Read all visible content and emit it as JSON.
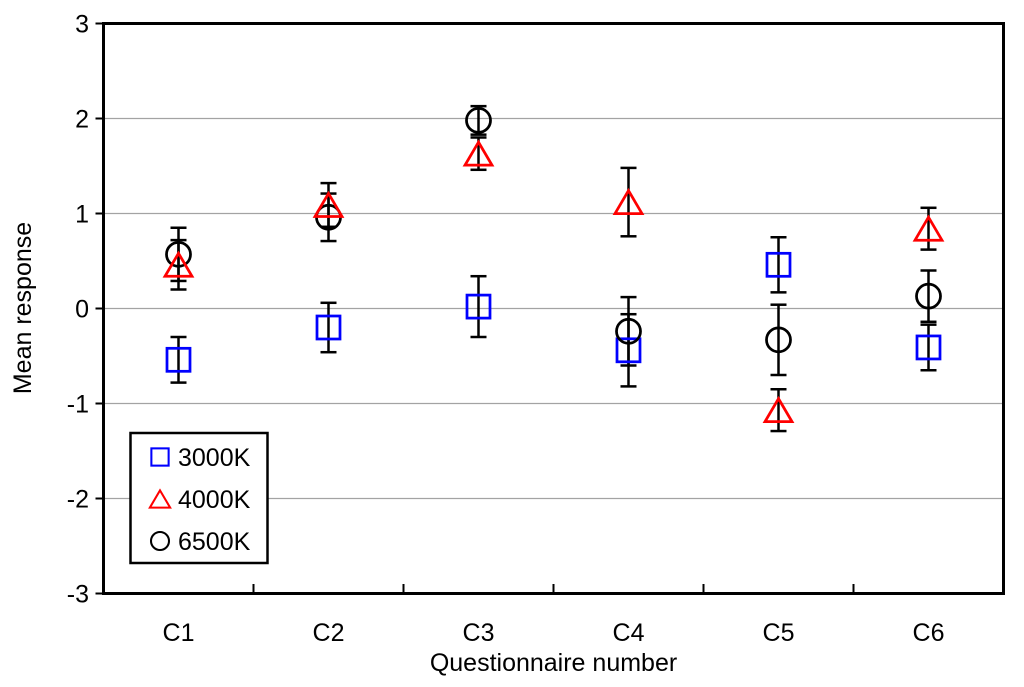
{
  "page": {
    "background": "#ffffff"
  },
  "chart_data": {
    "type": "scatter",
    "title": "",
    "xlabel": "Questionnaire number",
    "ylabel": "Mean response",
    "categories": [
      "C1",
      "C2",
      "C3",
      "C4",
      "C5",
      "C6"
    ],
    "y_ticks": [
      3,
      2,
      1,
      0,
      -1,
      -2,
      -3
    ],
    "ylim": [
      -3,
      3
    ],
    "grid": "horizontal-gray-lines",
    "gridline_color": "#a3a3a3",
    "axis_color": "#000000",
    "error_bar_color": "#000000",
    "legend_position": "inside-bottom-left",
    "legend_entries": [
      "3000K",
      "4000K",
      "6500K"
    ],
    "series": [
      {
        "name": "3000K",
        "marker": "square",
        "color": "#0000ff",
        "values": [
          -0.54,
          -0.2,
          0.02,
          -0.44,
          0.46,
          -0.41
        ],
        "errors": [
          0.24,
          0.26,
          0.32,
          0.38,
          0.29,
          0.24
        ]
      },
      {
        "name": "4000K",
        "marker": "triangle",
        "color": "#ff0000",
        "values": [
          0.46,
          1.09,
          1.63,
          1.12,
          -1.07,
          0.84
        ],
        "errors": [
          0.26,
          0.23,
          0.17,
          0.36,
          0.22,
          0.22
        ]
      },
      {
        "name": "6500K",
        "marker": "circle",
        "color": "#000000",
        "values": [
          0.57,
          0.96,
          1.98,
          -0.24,
          -0.33,
          0.13
        ],
        "errors": [
          0.28,
          0.25,
          0.15,
          0.36,
          0.37,
          0.27
        ]
      }
    ]
  }
}
